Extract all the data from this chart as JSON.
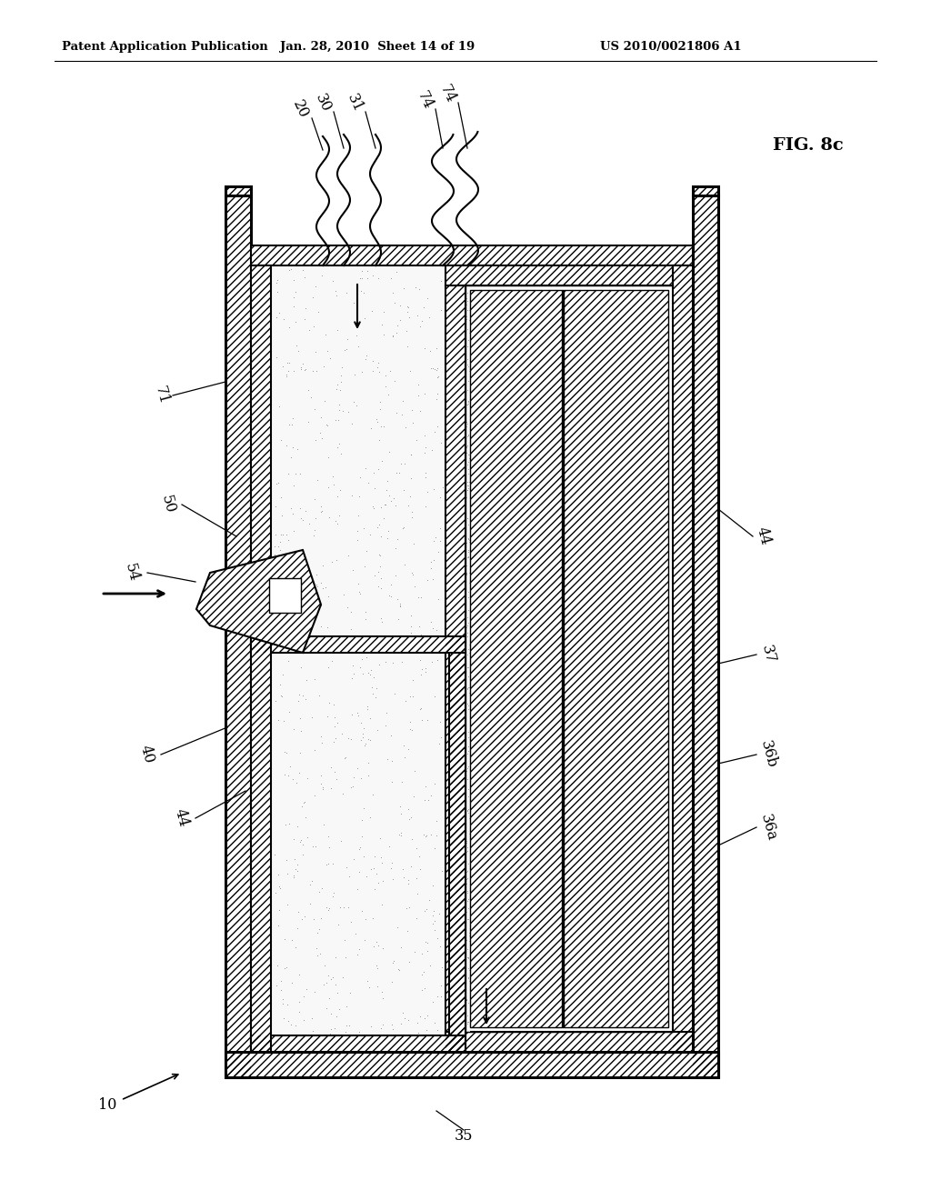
{
  "header_left": "Patent Application Publication",
  "header_mid": "Jan. 28, 2010  Sheet 14 of 19",
  "header_right": "US 2010/0021806 A1",
  "fig_label": "FIG. 8c",
  "background": "#ffffff",
  "line_color": "#000000",
  "label_10": "10",
  "label_20": "20",
  "label_30": "30",
  "label_31": "31",
  "label_35": "35",
  "label_36a": "36a",
  "label_36b": "36b",
  "label_37": "37",
  "label_40": "40",
  "label_44_left": "44",
  "label_44_right": "44",
  "label_50": "50",
  "label_54": "54",
  "label_71": "71",
  "label_74a": "74",
  "label_74b": "74"
}
